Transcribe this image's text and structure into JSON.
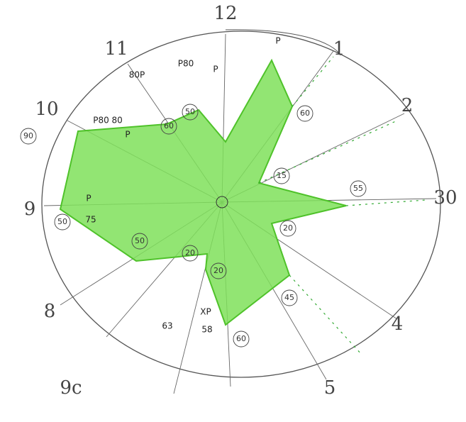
{
  "clock_labels": [
    "12",
    "1",
    "2",
    "30",
    "4",
    "5",
    "8",
    "9",
    "10",
    "11",
    "9c"
  ],
  "circled_labels": [
    "60",
    "15",
    "55",
    "20",
    "45",
    "60",
    "20",
    "20",
    "50",
    "50",
    "90",
    "60",
    "50"
  ],
  "annotations": [
    "80P",
    "P80",
    "P80 80",
    "P",
    "75",
    "P",
    "63",
    "XP",
    "58",
    "P",
    "P"
  ]
}
